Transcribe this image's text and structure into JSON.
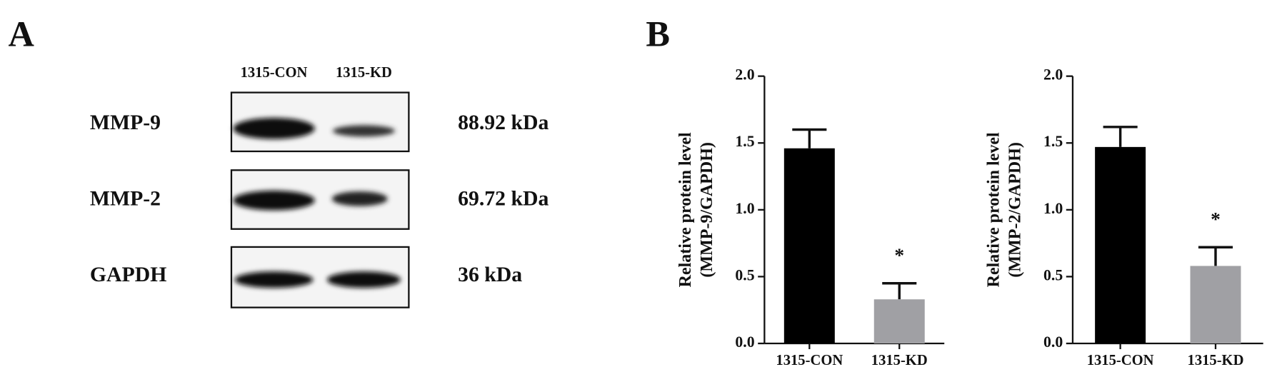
{
  "panel_a": {
    "label": "A",
    "lanes": [
      "1315-CON",
      "1315-KD"
    ],
    "rows": [
      {
        "protein": "MMP-9",
        "size": "88.92 kDa"
      },
      {
        "protein": "MMP-2",
        "size": "69.72 kDa"
      },
      {
        "protein": "GAPDH",
        "size": "36 kDa"
      }
    ]
  },
  "panel_b": {
    "label": "B"
  },
  "chart_data": [
    {
      "type": "bar",
      "y_label": [
        "Relative protein level",
        "(MMP-9/GAPDH)"
      ],
      "categories": [
        "1315-CON",
        "1315-KD"
      ],
      "values": [
        1.46,
        0.33
      ],
      "errors": [
        0.14,
        0.12
      ],
      "colors": [
        "#000000",
        "#a0a0a4"
      ],
      "value_annotations": [
        null,
        "*"
      ],
      "ylim": [
        0,
        2
      ],
      "yticks": [
        {
          "value": 0,
          "label": "0.0"
        },
        {
          "value": 0.5,
          "label": "0.5"
        },
        {
          "value": 1,
          "label": "1.0"
        },
        {
          "value": 1.5,
          "label": "1.5"
        },
        {
          "value": 2,
          "label": "2.0"
        }
      ]
    },
    {
      "type": "bar",
      "y_label": [
        "Relative protein level",
        "(MMP-2/GAPDH)"
      ],
      "categories": [
        "1315-CON",
        "1315-KD"
      ],
      "values": [
        1.47,
        0.58
      ],
      "errors": [
        0.15,
        0.14
      ],
      "colors": [
        "#000000",
        "#a0a0a4"
      ],
      "value_annotations": [
        null,
        "*"
      ],
      "ylim": [
        0,
        2
      ],
      "yticks": [
        {
          "value": 0,
          "label": "0.0"
        },
        {
          "value": 0.5,
          "label": "0.5"
        },
        {
          "value": 1,
          "label": "1.0"
        },
        {
          "value": 1.5,
          "label": "1.5"
        },
        {
          "value": 2,
          "label": "2.0"
        }
      ]
    }
  ]
}
